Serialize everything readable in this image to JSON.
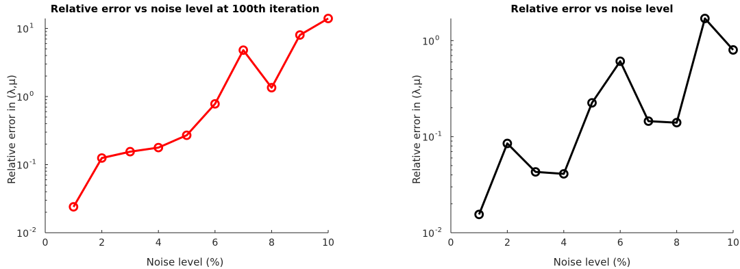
{
  "chart_data": [
    {
      "type": "line",
      "title": "Relative error vs noise level at 100th iteration",
      "xlabel": "Noise level (%)",
      "ylabel": "Relative error in (λ,μ)",
      "xlim": [
        0,
        10
      ],
      "ylim": [
        0.01,
        14
      ],
      "yscale": "log",
      "xticks": [
        "0",
        "2",
        "4",
        "6",
        "8",
        "10"
      ],
      "yticks": [
        {
          "base": "10",
          "exp": "-2",
          "value": 0.01
        },
        {
          "base": "10",
          "exp": "-1",
          "value": 0.1
        },
        {
          "base": "10",
          "exp": "0",
          "value": 1
        },
        {
          "base": "10",
          "exp": "1",
          "value": 10
        }
      ],
      "color": "#ff0000",
      "marker": "circle",
      "grid": false,
      "series": [
        {
          "x": [
            1,
            2,
            3,
            4,
            5,
            6,
            7,
            8,
            9,
            10
          ],
          "values": [
            0.024,
            0.125,
            0.155,
            0.178,
            0.27,
            0.78,
            4.8,
            1.35,
            8.0,
            14.0
          ]
        }
      ]
    },
    {
      "type": "line",
      "title": "Relative error vs noise level",
      "xlabel": "Noise level (%)",
      "ylabel": "Relative error in (λ,μ)",
      "xlim": [
        0,
        10
      ],
      "ylim": [
        0.01,
        1.7
      ],
      "yscale": "log",
      "xticks": [
        "0",
        "2",
        "4",
        "6",
        "8",
        "10"
      ],
      "yticks": [
        {
          "base": "10",
          "exp": "-2",
          "value": 0.01
        },
        {
          "base": "10",
          "exp": "-1",
          "value": 0.1
        },
        {
          "base": "10",
          "exp": "0",
          "value": 1
        }
      ],
      "color": "#000000",
      "marker": "circle",
      "grid": false,
      "series": [
        {
          "x": [
            1,
            2,
            3,
            4,
            5,
            6,
            7,
            8,
            9,
            10
          ],
          "values": [
            0.0155,
            0.085,
            0.043,
            0.041,
            0.225,
            0.61,
            0.145,
            0.14,
            1.7,
            0.8
          ]
        }
      ]
    }
  ]
}
